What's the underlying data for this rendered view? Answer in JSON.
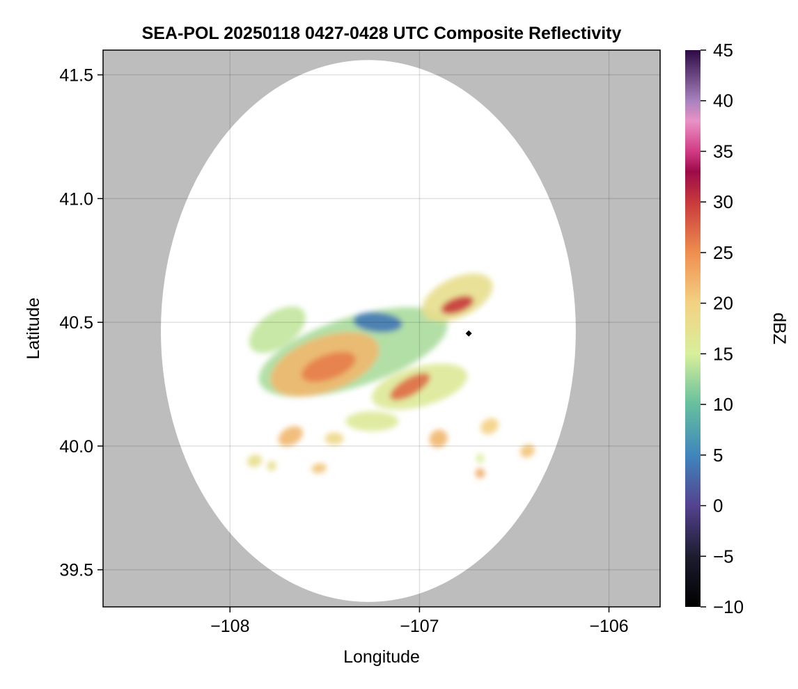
{
  "chart_data": {
    "type": "heatmap",
    "title": "SEA-POL 20250118 0427-0428 UTC Composite Reflectivity",
    "xlabel": "Longitude",
    "ylabel": "Latitude",
    "xlim": [
      -108.67,
      -105.73
    ],
    "ylim": [
      39.35,
      41.6
    ],
    "xticks": [
      -108,
      -107,
      -106
    ],
    "xtick_labels": [
      "−108",
      "−107",
      "−106"
    ],
    "yticks": [
      39.5,
      40.0,
      40.5,
      41.0,
      41.5
    ],
    "ytick_labels": [
      "39.5",
      "40.0",
      "40.5",
      "41.0",
      "41.5"
    ],
    "grid": true,
    "background_color": "#bdbdbd",
    "radar_coverage": {
      "center_lon": -107.27,
      "center_lat": 40.465,
      "radius_deg_lat": 1.095
    },
    "radar_marker": {
      "lon": -106.74,
      "lat": 40.455,
      "shape": "diamond",
      "color": "#000000"
    },
    "colorbar": {
      "label": "dBZ",
      "min": -10,
      "max": 45,
      "ticks": [
        -10,
        -5,
        0,
        5,
        10,
        15,
        20,
        25,
        30,
        35,
        40,
        45
      ],
      "tick_labels": [
        "−10",
        "−5",
        "0",
        "5",
        "10",
        "15",
        "20",
        "25",
        "30",
        "35",
        "40",
        "45"
      ],
      "colormap": "Spectral_r",
      "color_stops": [
        [
          -10,
          "#000000"
        ],
        [
          -5,
          "#1c1c2e"
        ],
        [
          0,
          "#54428f"
        ],
        [
          5,
          "#3f86be"
        ],
        [
          10,
          "#66bf9d"
        ],
        [
          15,
          "#d8ef9c"
        ],
        [
          20,
          "#f3d283"
        ],
        [
          25,
          "#ef8e4f"
        ],
        [
          30,
          "#c8393b"
        ],
        [
          33,
          "#9c0b4a"
        ],
        [
          35,
          "#d23b84"
        ],
        [
          38,
          "#e892c6"
        ],
        [
          40,
          "#a882bd"
        ],
        [
          45,
          "#2d0a45"
        ]
      ]
    },
    "echo_regions": [
      {
        "name": "central-band",
        "lon": -107.35,
        "lat": 40.38,
        "rx": 0.52,
        "ry": 0.14,
        "rot": -18,
        "dbz": 13
      },
      {
        "name": "west-main-core",
        "lon": -107.5,
        "lat": 40.33,
        "rx": 0.3,
        "ry": 0.11,
        "rot": -20,
        "dbz": 22
      },
      {
        "name": "northwest-spur",
        "lon": -107.75,
        "lat": 40.47,
        "rx": 0.17,
        "ry": 0.07,
        "rot": -35,
        "dbz": 14
      },
      {
        "name": "west-core-hot",
        "lon": -107.48,
        "lat": 40.32,
        "rx": 0.15,
        "ry": 0.05,
        "rot": -20,
        "dbz": 26
      },
      {
        "name": "southeast-band",
        "lon": -107.0,
        "lat": 40.24,
        "rx": 0.26,
        "ry": 0.08,
        "rot": -15,
        "dbz": 16
      },
      {
        "name": "southeast-core",
        "lon": -107.05,
        "lat": 40.24,
        "rx": 0.12,
        "ry": 0.035,
        "rot": -30,
        "dbz": 27
      },
      {
        "name": "northeast-cell",
        "lon": -106.8,
        "lat": 40.6,
        "rx": 0.2,
        "ry": 0.08,
        "rot": -25,
        "dbz": 18
      },
      {
        "name": "northeast-core",
        "lon": -106.8,
        "lat": 40.57,
        "rx": 0.09,
        "ry": 0.03,
        "rot": -20,
        "dbz": 30
      },
      {
        "name": "north-weak",
        "lon": -107.22,
        "lat": 40.5,
        "rx": 0.13,
        "ry": 0.04,
        "rot": 5,
        "dbz": 4
      },
      {
        "name": "south-lower",
        "lon": -107.25,
        "lat": 40.1,
        "rx": 0.14,
        "ry": 0.04,
        "rot": 0,
        "dbz": 16
      },
      {
        "name": "south-cell-1",
        "lon": -107.68,
        "lat": 40.04,
        "rx": 0.07,
        "ry": 0.035,
        "rot": -30,
        "dbz": 22
      },
      {
        "name": "south-cell-2",
        "lon": -107.45,
        "lat": 40.03,
        "rx": 0.05,
        "ry": 0.025,
        "rot": 0,
        "dbz": 19
      },
      {
        "name": "south-cell-3",
        "lon": -106.9,
        "lat": 40.03,
        "rx": 0.05,
        "ry": 0.035,
        "rot": -40,
        "dbz": 22
      },
      {
        "name": "east-cell-1",
        "lon": -106.63,
        "lat": 40.08,
        "rx": 0.05,
        "ry": 0.03,
        "rot": -30,
        "dbz": 20
      },
      {
        "name": "east-cell-2",
        "lon": -106.43,
        "lat": 39.98,
        "rx": 0.04,
        "ry": 0.025,
        "rot": -30,
        "dbz": 21
      },
      {
        "name": "southwest-cell-1",
        "lon": -107.87,
        "lat": 39.94,
        "rx": 0.04,
        "ry": 0.025,
        "rot": -20,
        "dbz": 18
      },
      {
        "name": "southwest-cell-2",
        "lon": -107.53,
        "lat": 39.91,
        "rx": 0.04,
        "ry": 0.02,
        "rot": -10,
        "dbz": 21
      },
      {
        "name": "southwest-cell-3",
        "lon": -107.78,
        "lat": 39.92,
        "rx": 0.025,
        "ry": 0.02,
        "rot": 0,
        "dbz": 18
      },
      {
        "name": "southeast-small",
        "lon": -106.68,
        "lat": 39.89,
        "rx": 0.025,
        "ry": 0.02,
        "rot": 0,
        "dbz": 23
      },
      {
        "name": "southeast-small-2",
        "lon": -106.68,
        "lat": 39.95,
        "rx": 0.02,
        "ry": 0.02,
        "rot": 0,
        "dbz": 15
      }
    ]
  }
}
